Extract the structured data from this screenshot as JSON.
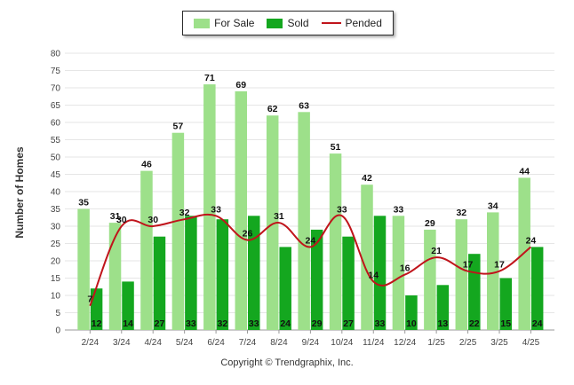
{
  "legend": {
    "items": [
      {
        "label": "For Sale",
        "color": "#9de08a",
        "kind": "bar"
      },
      {
        "label": "Sold",
        "color": "#14a71f",
        "kind": "bar"
      },
      {
        "label": "Pended",
        "color": "#c0141b",
        "kind": "line"
      }
    ]
  },
  "footer": {
    "copyright": "Copyright © Trendgraphix, Inc."
  },
  "chart_data": {
    "type": "bar",
    "ylabel": "Number of Homes",
    "xlabel": "",
    "ylim": [
      0,
      80
    ],
    "ytick_step": 5,
    "grid": true,
    "legend_position": "top-center",
    "categories": [
      "2/24",
      "3/24",
      "4/24",
      "5/24",
      "6/24",
      "7/24",
      "8/24",
      "9/24",
      "10/24",
      "11/24",
      "12/24",
      "1/25",
      "2/25",
      "3/25",
      "4/25"
    ],
    "series": [
      {
        "name": "For Sale",
        "type": "bar",
        "color": "#9de08a",
        "values": [
          35,
          31,
          46,
          57,
          71,
          69,
          62,
          63,
          51,
          42,
          33,
          29,
          32,
          34,
          44
        ]
      },
      {
        "name": "Sold",
        "type": "bar",
        "color": "#14a71f",
        "values": [
          12,
          14,
          27,
          33,
          32,
          33,
          24,
          29,
          27,
          33,
          10,
          13,
          22,
          15,
          24
        ]
      },
      {
        "name": "Pended",
        "type": "line",
        "color": "#c0141b",
        "values": [
          7,
          30,
          30,
          32,
          33,
          26,
          31,
          24,
          33,
          14,
          16,
          21,
          17,
          17,
          24
        ]
      }
    ]
  }
}
